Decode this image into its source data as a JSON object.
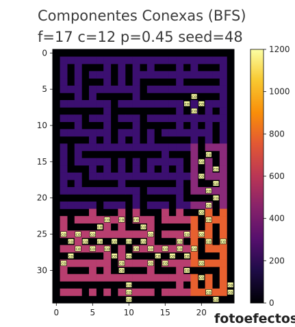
{
  "chart_data": {
    "type": "heatmap",
    "title": "Componentes Conexas (BFS)",
    "subtitle": "f=17 c=12 p=0.45 seed=48",
    "grid_rows": 35,
    "grid_cols": 25,
    "x_ticks": [
      0,
      5,
      10,
      15,
      20
    ],
    "y_ticks": [
      0,
      5,
      10,
      15,
      20,
      25,
      30
    ],
    "colormap": "inferno",
    "colorbar": {
      "range": [
        0,
        1200
      ],
      "ticks": [
        0,
        200,
        400,
        600,
        800,
        1000,
        1200
      ]
    },
    "region_values": [
      {
        "name": "wall",
        "value": 0,
        "color": "#000004"
      },
      {
        "name": "upper",
        "value": 230,
        "color": "#3b0f70"
      },
      {
        "name": "right_column",
        "value": 450,
        "color": "#8a2a7a"
      },
      {
        "name": "lower_left",
        "value": 600,
        "color": "#b83e6f"
      },
      {
        "name": "lower_right",
        "value": 780,
        "color": "#e8602f"
      }
    ],
    "cell_marker_label": "co",
    "markers": [
      [
        6,
        19
      ],
      [
        7,
        18
      ],
      [
        7,
        20
      ],
      [
        8,
        19
      ],
      [
        14,
        21
      ],
      [
        15,
        20
      ],
      [
        16,
        22
      ],
      [
        17,
        20
      ],
      [
        18,
        22
      ],
      [
        19,
        21
      ],
      [
        20,
        22
      ],
      [
        21,
        21
      ],
      [
        22,
        20
      ],
      [
        23,
        7
      ],
      [
        23,
        9
      ],
      [
        23,
        11
      ],
      [
        23,
        21
      ],
      [
        24,
        6
      ],
      [
        24,
        12
      ],
      [
        25,
        1
      ],
      [
        25,
        3
      ],
      [
        25,
        5
      ],
      [
        25,
        13
      ],
      [
        25,
        18
      ],
      [
        25,
        20
      ],
      [
        26,
        2
      ],
      [
        26,
        4
      ],
      [
        26,
        6
      ],
      [
        26,
        8
      ],
      [
        26,
        10
      ],
      [
        26,
        12
      ],
      [
        26,
        17
      ],
      [
        26,
        21
      ],
      [
        26,
        23
      ],
      [
        27,
        3
      ],
      [
        27,
        5
      ],
      [
        27,
        7
      ],
      [
        27,
        11
      ],
      [
        27,
        13
      ],
      [
        27,
        15
      ],
      [
        27,
        17
      ],
      [
        27,
        19
      ],
      [
        28,
        2
      ],
      [
        28,
        8
      ],
      [
        28,
        10
      ],
      [
        28,
        14
      ],
      [
        28,
        16
      ],
      [
        28,
        18
      ],
      [
        29,
        1
      ],
      [
        29,
        9
      ],
      [
        29,
        13
      ],
      [
        29,
        15
      ],
      [
        29,
        20
      ],
      [
        30,
        9
      ],
      [
        30,
        18
      ],
      [
        31,
        20
      ],
      [
        32,
        10
      ],
      [
        32,
        24
      ],
      [
        33,
        10
      ],
      [
        33,
        21
      ],
      [
        33,
        24
      ],
      [
        34,
        10
      ],
      [
        34,
        22
      ]
    ]
  },
  "watermark": {
    "text": "fotoefectos"
  }
}
